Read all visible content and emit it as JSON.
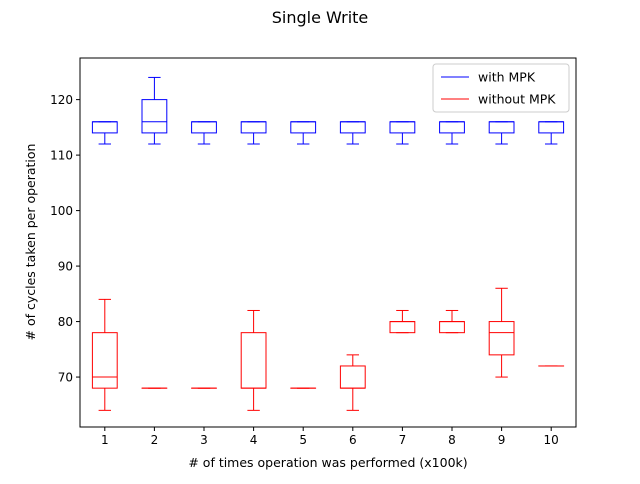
{
  "chart_data": {
    "type": "box",
    "title": "Single Write",
    "xlabel": "# of times operation was performed (x100k)",
    "ylabel": "# of cycles taken per operation",
    "categories": [
      "1",
      "2",
      "3",
      "4",
      "5",
      "6",
      "7",
      "8",
      "9",
      "10"
    ],
    "xlim": [
      0.5,
      10.5
    ],
    "ylim": [
      61,
      127.5
    ],
    "yticks": [
      70,
      80,
      90,
      100,
      110,
      120
    ],
    "grid": false,
    "legend_position": "top-right",
    "series": [
      {
        "name": "with MPK",
        "color": "#0000ff",
        "boxes": [
          {
            "whislo": 112,
            "q1": 114,
            "med": 116,
            "q3": 116,
            "whishi": 116
          },
          {
            "whislo": 112,
            "q1": 114,
            "med": 116,
            "q3": 120,
            "whishi": 124
          },
          {
            "whislo": 112,
            "q1": 114,
            "med": 116,
            "q3": 116,
            "whishi": 116
          },
          {
            "whislo": 112,
            "q1": 114,
            "med": 116,
            "q3": 116,
            "whishi": 116
          },
          {
            "whislo": 112,
            "q1": 114,
            "med": 116,
            "q3": 116,
            "whishi": 116
          },
          {
            "whislo": 112,
            "q1": 114,
            "med": 116,
            "q3": 116,
            "whishi": 116
          },
          {
            "whislo": 112,
            "q1": 114,
            "med": 116,
            "q3": 116,
            "whishi": 116
          },
          {
            "whislo": 112,
            "q1": 114,
            "med": 116,
            "q3": 116,
            "whishi": 116
          },
          {
            "whislo": 112,
            "q1": 114,
            "med": 116,
            "q3": 116,
            "whishi": 116
          },
          {
            "whislo": 112,
            "q1": 114,
            "med": 116,
            "q3": 116,
            "whishi": 116
          }
        ]
      },
      {
        "name": "without MPK",
        "color": "#ff0000",
        "boxes": [
          {
            "whislo": 64,
            "q1": 68,
            "med": 70,
            "q3": 78,
            "whishi": 84
          },
          {
            "whislo": 68,
            "q1": 68,
            "med": 68,
            "q3": 68,
            "whishi": 68
          },
          {
            "whislo": 68,
            "q1": 68,
            "med": 68,
            "q3": 68,
            "whishi": 68
          },
          {
            "whislo": 64,
            "q1": 68,
            "med": 68,
            "q3": 78,
            "whishi": 82
          },
          {
            "whislo": 68,
            "q1": 68,
            "med": 68,
            "q3": 68,
            "whishi": 68
          },
          {
            "whislo": 64,
            "q1": 68,
            "med": 68,
            "q3": 72,
            "whishi": 74
          },
          {
            "whislo": 78,
            "q1": 78,
            "med": 80,
            "q3": 80,
            "whishi": 82
          },
          {
            "whislo": 78,
            "q1": 78,
            "med": 80,
            "q3": 80,
            "whishi": 82
          },
          {
            "whislo": 70,
            "q1": 74,
            "med": 78,
            "q3": 80,
            "whishi": 86
          },
          {
            "whislo": 72,
            "q1": 72,
            "med": 72,
            "q3": 72,
            "whishi": 72
          }
        ]
      }
    ]
  }
}
